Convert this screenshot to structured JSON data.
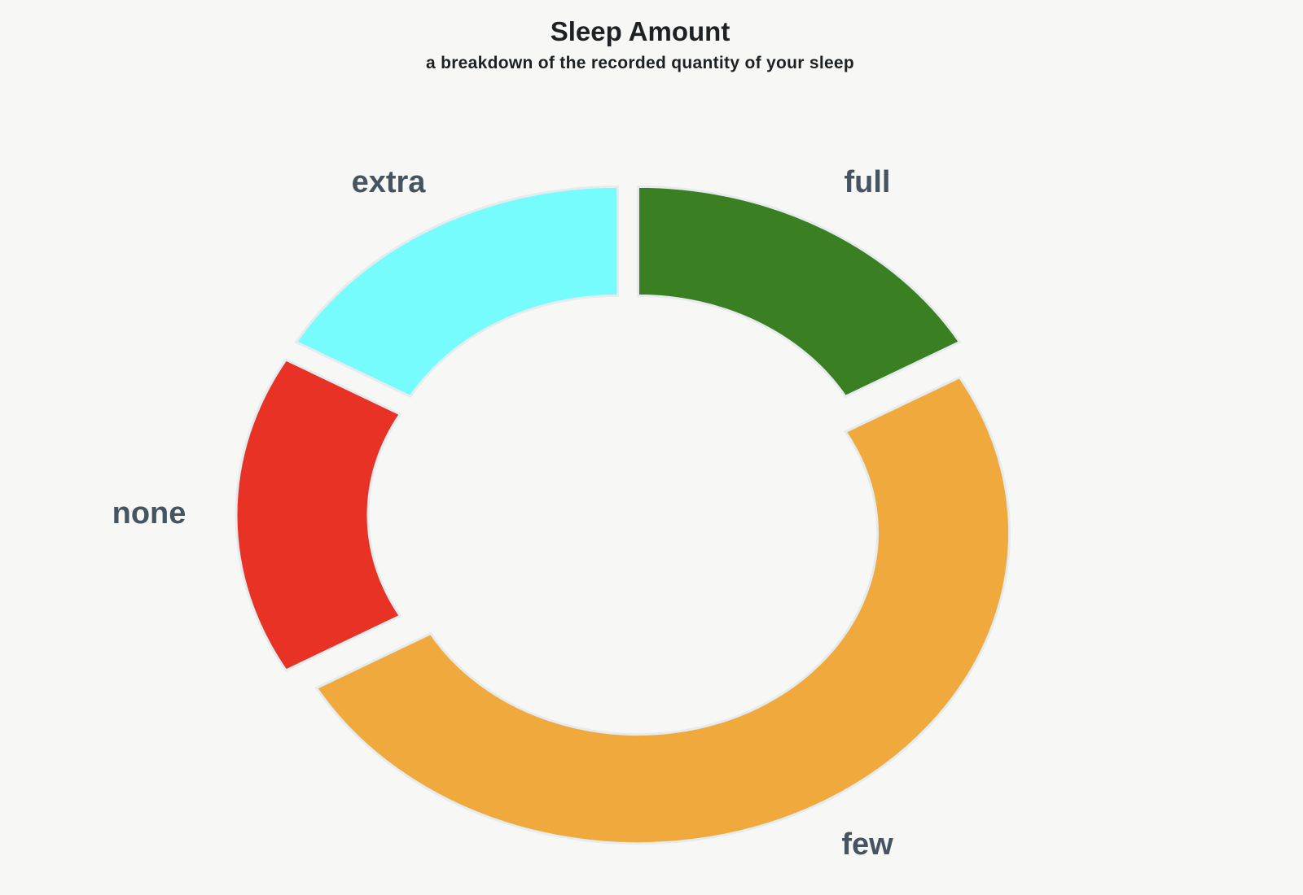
{
  "chart_data": {
    "type": "pie",
    "variant": "donut",
    "title": "Sleep Amount",
    "subtitle": "a breakdown of the recorded quantity of your sleep",
    "slices": [
      {
        "label": "full",
        "value": 2,
        "color": "#3a7f22"
      },
      {
        "label": "few",
        "value": 6,
        "color": "#f0a93d"
      },
      {
        "label": "none",
        "value": 2,
        "color": "#e83226"
      },
      {
        "label": "extra",
        "value": 2,
        "color": "#76fcfd"
      }
    ],
    "legend": "none",
    "slice_border_color": "#e6ecee"
  }
}
